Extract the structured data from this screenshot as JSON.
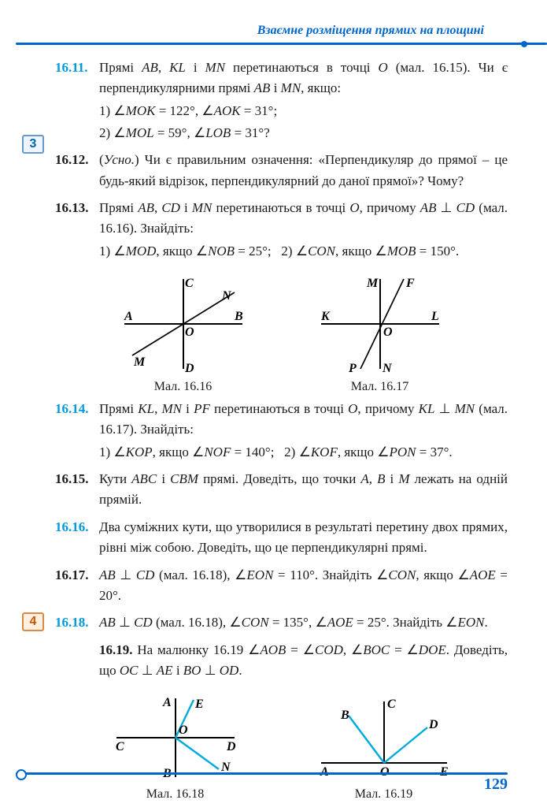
{
  "header": "Взаємне розміщення прямих на площині",
  "page_number": "129",
  "markers": {
    "m3": "3",
    "m4": "4"
  },
  "problems": {
    "p16_11": {
      "num": "16.11.",
      "t1": "Прямі <span class='it'>AB</span>, <span class='it'>KL</span> і <span class='it'>MN</span> перетинаються в точці <span class='it'>O</span> (мал. 16.15). Чи є перпендикулярними прямі <span class='it'>AB</span> і <span class='it'>MN</span>, якщо:",
      "s1": "1) ∠<span class='it'>MOK</span> = 122°, ∠<span class='it'>AOK</span> = 31°;",
      "s2": "2) ∠<span class='it'>MOL</span> = 59°, ∠<span class='it'>LOB</span> = 31°?"
    },
    "p16_12": {
      "num": "16.12.",
      "t1": "(<span class='it'>Усно.</span>) Чи є правильним означення: «Перпендикуляр до прямої – це будь-який відрізок, перпендикулярний до даної прямої»? Чому?"
    },
    "p16_13": {
      "num": "16.13.",
      "t1": "Прямі <span class='it'>AB</span>, <span class='it'>CD</span> і <span class='it'>MN</span> перетинаються в точці <span class='it'>O</span>, причому <span class='it'>AB</span> ⊥ <span class='it'>CD</span> (мал. 16.16). Знайдіть:",
      "s1": "1) ∠<span class='it'>MOD</span>, якщо ∠<span class='it'>NOB</span> = 25°;&nbsp;&nbsp;&nbsp;2) ∠<span class='it'>CON</span>, якщо ∠<span class='it'>MOB</span> = 150°."
    },
    "p16_14": {
      "num": "16.14.",
      "t1": "Прямі <span class='it'>KL</span>, <span class='it'>MN</span> і <span class='it'>PF</span> перетинаються в точці <span class='it'>O</span>, причому <span class='it'>KL</span> ⊥ <span class='it'>MN</span> (мал. 16.17). Знайдіть:",
      "s1": "1) ∠<span class='it'>KOP</span>, якщо ∠<span class='it'>NOF</span> = 140°;&nbsp;&nbsp;&nbsp;2) ∠<span class='it'>KOF</span>, якщо ∠<span class='it'>PON</span> = 37°."
    },
    "p16_15": {
      "num": "16.15.",
      "t1": "Кути <span class='it'>ABC</span> і <span class='it'>CBM</span> прямі. Доведіть, що точки <span class='it'>A</span>, <span class='it'>B</span> і <span class='it'>M</span> лежать на одній прямій."
    },
    "p16_16": {
      "num": "16.16.",
      "t1": "Два суміжних кути, що утворилися в результаті перетину двох прямих, рівні між собою. Доведіть, що це перпенди­кулярні прямі."
    },
    "p16_17": {
      "num": "16.17.",
      "t1": "<span class='it'>AB</span> ⊥ <span class='it'>CD</span> (мал. 16.18), ∠<span class='it'>EON</span> = 110°. Знайдіть ∠<span class='it'>CON</span>, якщо ∠<span class='it'>AOE</span> = 20°."
    },
    "p16_18": {
      "num": "16.18.",
      "t1": "<span class='it'>AB</span> ⊥ <span class='it'>CD</span> (мал. 16.18), ∠<span class='it'>CON</span> = 135°, ∠<span class='it'>AOE</span> = 25°. Знайдіть ∠<span class='it'>EON</span>."
    },
    "p16_19": {
      "num": "16.19.",
      "t1": "На малюнку 16.19 ∠<span class='it'>AOB</span> = ∠<span class='it'>COD</span>, ∠<span class='it'>BOC</span> = ∠<span class='it'>DOE</span>. Доведіть, що <span class='it'>OC</span> ⊥ <span class='it'>AE</span> і <span class='it'>BO</span> ⊥ <span class='it'>OD</span>."
    }
  },
  "figs": {
    "f16_16": {
      "cap": "Мал. 16.16",
      "labels": {
        "A": "A",
        "B": "B",
        "C": "C",
        "D": "D",
        "M": "M",
        "N": "N",
        "O": "O"
      },
      "colors": {
        "line": "#000000",
        "width_main": 2,
        "width_thin": 1.5
      }
    },
    "f16_17": {
      "cap": "Мал. 16.17",
      "labels": {
        "K": "K",
        "L": "L",
        "M": "M",
        "N": "N",
        "P": "P",
        "F": "F",
        "O": "O"
      },
      "colors": {
        "line": "#000000"
      }
    },
    "f16_18": {
      "cap": "Мал. 16.18",
      "labels": {
        "A": "A",
        "B": "B",
        "C": "C",
        "D": "D",
        "E": "E",
        "N": "N",
        "O": "O"
      },
      "colors": {
        "line": "#000000",
        "ray": "#00aadd"
      }
    },
    "f16_19": {
      "cap": "Мал. 16.19",
      "labels": {
        "A": "A",
        "B": "B",
        "C": "C",
        "D": "D",
        "E": "E",
        "O": "O"
      },
      "colors": {
        "line": "#000000",
        "ray": "#00aadd"
      }
    }
  }
}
